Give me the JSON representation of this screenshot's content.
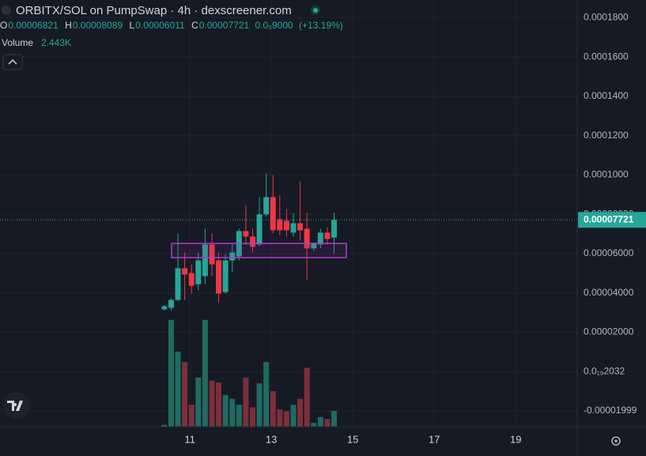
{
  "chart_data": {
    "type": "candlestick",
    "title": "ORBITX/SOL on PumpSwap · 4h · dexscreener.com",
    "ohlc_letters": [
      "O",
      "H",
      "L",
      "C"
    ],
    "change": {
      "value": 9e-06,
      "label": "0.0₅9000"
    },
    "change_pct": {
      "value": 13.19,
      "label": "(+13.19%)"
    },
    "x": [
      10.375,
      10.542,
      10.708,
      10.875,
      11.042,
      11.208,
      11.375,
      11.542,
      11.708,
      11.875,
      12.042,
      12.208,
      12.375,
      12.542,
      12.708,
      12.875,
      13.042,
      13.208,
      13.375,
      13.542,
      13.708,
      13.875,
      14.042,
      14.208,
      14.375,
      14.542
    ],
    "open": [
      3.17e-05,
      3.25e-05,
      3.65e-05,
      5.26e-05,
      5.02e-05,
      4.45e-05,
      4.86e-05,
      6.47e-05,
      5.66e-05,
      4.05e-05,
      5.66e-05,
      5.86e-05,
      7.15e-05,
      6.87e-05,
      6.47e-05,
      8e-05,
      8.88e-05,
      7.75e-05,
      7.67e-05,
      7.07e-05,
      7.55e-05,
      7.27e-05,
      6.27e-05,
      6.47e-05,
      7.07e-05,
      6.821e-05
    ],
    "high": [
      3.38e-05,
      3.73e-05,
      7.03e-05,
      6.06e-05,
      5.46e-05,
      6.06e-05,
      7.27e-05,
      7.03e-05,
      6.06e-05,
      5.98e-05,
      6.47e-05,
      7.27e-05,
      8.48e-05,
      7.27e-05,
      8.88e-05,
      0.0001009,
      0.0001001,
      8.96e-05,
      8.28e-05,
      8.08e-05,
      9.69e-05,
      8.08e-05,
      6.55e-05,
      7.27e-05,
      7.35e-05,
      8.089e-05
    ],
    "low": [
      3.12e-05,
      3.09e-05,
      3.59e-05,
      3.65e-05,
      3.97e-05,
      4.13e-05,
      4.45e-05,
      4.86e-05,
      3.49e-05,
      3.97e-05,
      5.06e-05,
      5.66e-05,
      6.47e-05,
      6.06e-05,
      6.39e-05,
      7.88e-05,
      7.03e-05,
      6.95e-05,
      6.87e-05,
      6.87e-05,
      6.67e-05,
      4.66e-05,
      6.14e-05,
      6.27e-05,
      6.47e-05,
      6.011e-05
    ],
    "close": [
      3.33e-05,
      3.65e-05,
      5.26e-05,
      4.94e-05,
      4.37e-05,
      5.66e-05,
      6.47e-05,
      5.46e-05,
      3.97e-05,
      5.66e-05,
      6.06e-05,
      7.15e-05,
      6.87e-05,
      6.35e-05,
      8e-05,
      8.88e-05,
      7.19e-05,
      7.19e-05,
      7.19e-05,
      7.55e-05,
      7.19e-05,
      6.27e-05,
      6.55e-05,
      7.07e-05,
      6.75e-05,
      7.721e-05
    ],
    "up_color": "#26a69a",
    "down_color": "#f23645",
    "volume": {
      "name": "Volume",
      "up_color": "#1f6b61",
      "down_color": "#7c2f3a",
      "values": [
        300,
        16500,
        11600,
        10000,
        3400,
        7600,
        16500,
        7100,
        6800,
        4900,
        4300,
        3400,
        7600,
        3000,
        6700,
        10000,
        5500,
        2700,
        2400,
        3400,
        4300,
        9100,
        600,
        1500,
        1200,
        2443
      ],
      "value_labels": [
        null,
        null,
        null,
        null,
        null,
        null,
        null,
        null,
        null,
        null,
        null,
        null,
        null,
        null,
        null,
        null,
        null,
        null,
        null,
        null,
        null,
        null,
        null,
        null,
        null,
        "2.443K"
      ],
      "ylim": [
        0,
        40000
      ]
    },
    "xlim": [
      6.34,
      20.51
    ],
    "xticks": [
      11,
      13,
      15,
      17,
      19
    ],
    "ylim": [
      -2.8e-05,
      0.000189
    ],
    "yticks": [
      {
        "value": 0.00018,
        "label": "0.0001800"
      },
      {
        "value": 0.00016,
        "label": "0.0001600"
      },
      {
        "value": 0.00014,
        "label": "0.0001400"
      },
      {
        "value": 0.00012,
        "label": "0.0001200"
      },
      {
        "value": 0.0001,
        "label": "0.0001000"
      },
      {
        "value": 8e-05,
        "label": "0.00008000"
      },
      {
        "value": 6e-05,
        "label": "0.00006000"
      },
      {
        "value": 4e-05,
        "label": "0.00004000"
      },
      {
        "value": 2e-05,
        "label": "0.00002000"
      },
      {
        "value": 2.032e-20,
        "label": "0.0₁₉2032"
      },
      {
        "value": -1.999e-05,
        "label": "-0.00001999"
      }
    ],
    "grid": true
  }
}
